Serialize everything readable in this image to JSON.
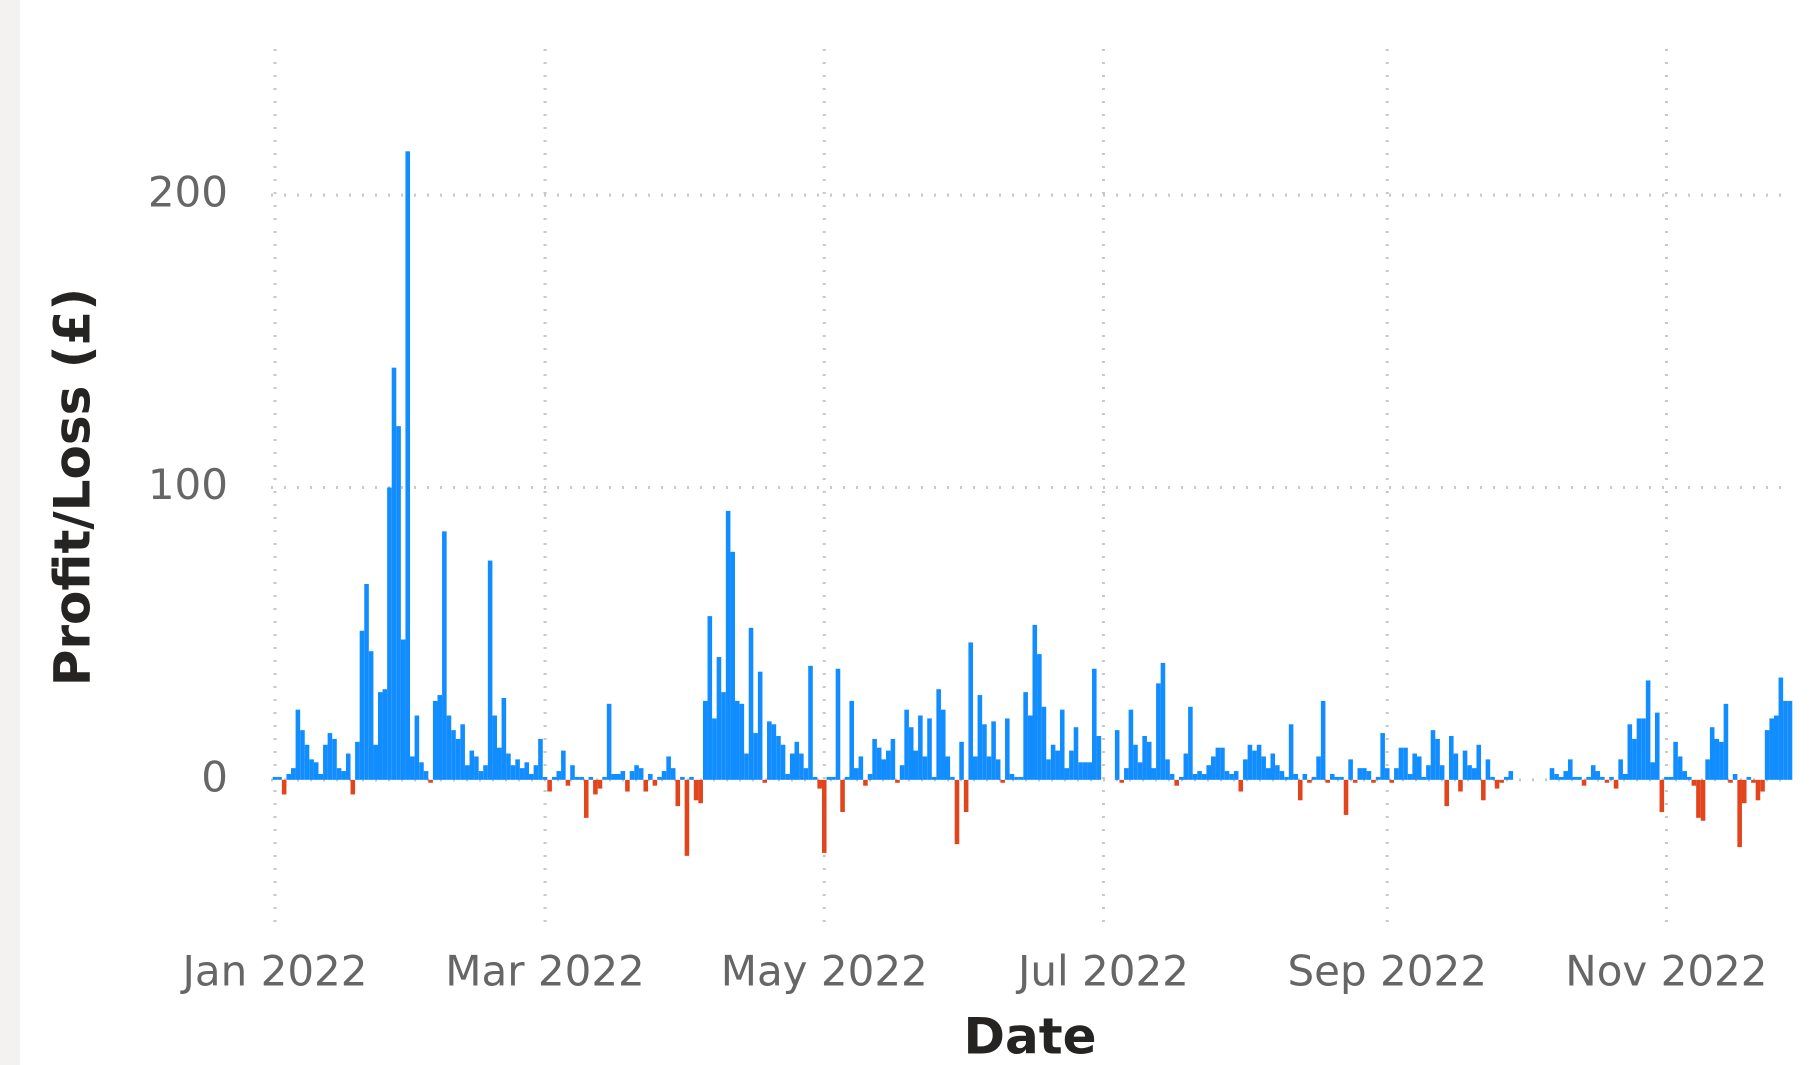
{
  "chart_data": {
    "type": "bar",
    "xlabel": "Date",
    "ylabel": "Profit/Loss (£)",
    "color": "#118dff",
    "negative_color": "#e2441c",
    "grid": true,
    "ylim": [
      -50,
      250
    ],
    "yticks": [
      0,
      100,
      200
    ],
    "xlim": [
      "2022-01-01",
      "2022-11-28"
    ],
    "xticks": [
      {
        "value": "2022-01-01",
        "label": "Jan 2022"
      },
      {
        "value": "2022-03-01",
        "label": "Mar 2022"
      },
      {
        "value": "2022-05-01",
        "label": "May 2022"
      },
      {
        "value": "2022-07-01",
        "label": "Jul 2022"
      },
      {
        "value": "2022-09-01",
        "label": "Sep 2022"
      },
      {
        "value": "2022-11-01",
        "label": "Nov 2022"
      }
    ],
    "x": [
      "2022-01-01",
      "2022-01-02",
      "2022-01-03",
      "2022-01-04",
      "2022-01-05",
      "2022-01-06",
      "2022-01-07",
      "2022-01-08",
      "2022-01-09",
      "2022-01-10",
      "2022-01-11",
      "2022-01-12",
      "2022-01-13",
      "2022-01-14",
      "2022-01-15",
      "2022-01-16",
      "2022-01-17",
      "2022-01-18",
      "2022-01-19",
      "2022-01-20",
      "2022-01-21",
      "2022-01-22",
      "2022-01-23",
      "2022-01-24",
      "2022-01-25",
      "2022-01-26",
      "2022-01-27",
      "2022-01-28",
      "2022-01-29",
      "2022-01-30",
      "2022-01-31",
      "2022-02-01",
      "2022-02-02",
      "2022-02-03",
      "2022-02-04",
      "2022-02-05",
      "2022-02-06",
      "2022-02-07",
      "2022-02-08",
      "2022-02-09",
      "2022-02-10",
      "2022-02-11",
      "2022-02-12",
      "2022-02-13",
      "2022-02-14",
      "2022-02-15",
      "2022-02-16",
      "2022-02-17",
      "2022-02-18",
      "2022-02-19",
      "2022-02-20",
      "2022-02-21",
      "2022-02-22",
      "2022-02-23",
      "2022-02-24",
      "2022-02-25",
      "2022-02-26",
      "2022-02-27",
      "2022-02-28",
      "2022-03-01",
      "2022-03-02",
      "2022-03-03",
      "2022-03-04",
      "2022-03-05",
      "2022-03-06",
      "2022-03-07",
      "2022-03-08",
      "2022-03-09",
      "2022-03-10",
      "2022-03-11",
      "2022-03-12",
      "2022-03-13",
      "2022-03-14",
      "2022-03-15",
      "2022-03-16",
      "2022-03-17",
      "2022-03-18",
      "2022-03-19",
      "2022-03-20",
      "2022-03-21",
      "2022-03-22",
      "2022-03-23",
      "2022-03-24",
      "2022-03-25",
      "2022-03-26",
      "2022-03-27",
      "2022-03-28",
      "2022-03-29",
      "2022-03-30",
      "2022-03-31",
      "2022-04-01",
      "2022-04-02",
      "2022-04-03",
      "2022-04-04",
      "2022-04-05",
      "2022-04-06",
      "2022-04-07",
      "2022-04-08",
      "2022-04-09",
      "2022-04-10",
      "2022-04-11",
      "2022-04-12",
      "2022-04-13",
      "2022-04-14",
      "2022-04-15",
      "2022-04-16",
      "2022-04-17",
      "2022-04-18",
      "2022-04-19",
      "2022-04-20",
      "2022-04-21",
      "2022-04-22",
      "2022-04-23",
      "2022-04-24",
      "2022-04-25",
      "2022-04-26",
      "2022-04-27",
      "2022-04-28",
      "2022-04-29",
      "2022-04-30",
      "2022-05-01",
      "2022-05-02",
      "2022-05-03",
      "2022-05-04",
      "2022-05-05",
      "2022-05-06",
      "2022-05-07",
      "2022-05-08",
      "2022-05-09",
      "2022-05-10",
      "2022-05-11",
      "2022-05-12",
      "2022-05-13",
      "2022-05-14",
      "2022-05-15",
      "2022-05-16",
      "2022-05-17",
      "2022-05-18",
      "2022-05-19",
      "2022-05-20",
      "2022-05-21",
      "2022-05-22",
      "2022-05-23",
      "2022-05-24",
      "2022-05-25",
      "2022-05-26",
      "2022-05-27",
      "2022-05-28",
      "2022-05-29",
      "2022-05-30",
      "2022-05-31",
      "2022-06-01",
      "2022-06-02",
      "2022-06-03",
      "2022-06-04",
      "2022-06-05",
      "2022-06-06",
      "2022-06-07",
      "2022-06-08",
      "2022-06-09",
      "2022-06-10",
      "2022-06-11",
      "2022-06-12",
      "2022-06-13",
      "2022-06-14",
      "2022-06-15",
      "2022-06-16",
      "2022-06-17",
      "2022-06-18",
      "2022-06-19",
      "2022-06-20",
      "2022-06-21",
      "2022-06-22",
      "2022-06-23",
      "2022-06-24",
      "2022-06-25",
      "2022-06-26",
      "2022-06-27",
      "2022-06-28",
      "2022-06-29",
      "2022-06-30",
      "2022-07-01",
      "2022-07-02",
      "2022-07-03",
      "2022-07-04",
      "2022-07-05",
      "2022-07-06",
      "2022-07-07",
      "2022-07-08",
      "2022-07-09",
      "2022-07-10",
      "2022-07-11",
      "2022-07-12",
      "2022-07-13",
      "2022-07-14",
      "2022-07-15",
      "2022-07-16",
      "2022-07-17",
      "2022-07-18",
      "2022-07-19",
      "2022-07-20",
      "2022-07-21",
      "2022-07-22",
      "2022-07-23",
      "2022-07-24",
      "2022-07-25",
      "2022-07-26",
      "2022-07-27",
      "2022-07-28",
      "2022-07-29",
      "2022-07-30",
      "2022-07-31",
      "2022-08-01",
      "2022-08-02",
      "2022-08-03",
      "2022-08-04",
      "2022-08-05",
      "2022-08-06",
      "2022-08-07",
      "2022-08-08",
      "2022-08-09",
      "2022-08-10",
      "2022-08-11",
      "2022-08-12",
      "2022-08-13",
      "2022-08-14",
      "2022-08-15",
      "2022-08-16",
      "2022-08-17",
      "2022-08-18",
      "2022-08-19",
      "2022-08-20",
      "2022-08-21",
      "2022-08-22",
      "2022-08-23",
      "2022-08-24",
      "2022-08-25",
      "2022-08-26",
      "2022-08-27",
      "2022-08-28",
      "2022-08-29",
      "2022-08-30",
      "2022-08-31",
      "2022-09-01",
      "2022-09-02",
      "2022-09-03",
      "2022-09-04",
      "2022-09-05",
      "2022-09-06",
      "2022-09-07",
      "2022-09-08",
      "2022-09-09",
      "2022-09-10",
      "2022-09-11",
      "2022-09-12",
      "2022-09-13",
      "2022-09-14",
      "2022-09-15",
      "2022-09-16",
      "2022-09-17",
      "2022-09-18",
      "2022-09-19",
      "2022-09-20",
      "2022-09-21",
      "2022-09-22",
      "2022-09-23",
      "2022-09-24",
      "2022-09-25",
      "2022-09-26",
      "2022-09-27",
      "2022-09-28",
      "2022-09-29",
      "2022-09-30",
      "2022-10-01",
      "2022-10-02",
      "2022-10-03",
      "2022-10-04",
      "2022-10-05",
      "2022-10-06",
      "2022-10-07",
      "2022-10-08",
      "2022-10-09",
      "2022-10-10",
      "2022-10-11",
      "2022-10-12",
      "2022-10-13",
      "2022-10-14",
      "2022-10-15",
      "2022-10-16",
      "2022-10-17",
      "2022-10-18",
      "2022-10-19",
      "2022-10-20",
      "2022-10-21",
      "2022-10-22",
      "2022-10-23",
      "2022-10-24",
      "2022-10-25",
      "2022-10-26",
      "2022-10-27",
      "2022-10-28",
      "2022-10-29",
      "2022-10-30",
      "2022-10-31",
      "2022-11-01",
      "2022-11-02",
      "2022-11-03",
      "2022-11-04",
      "2022-11-05",
      "2022-11-06",
      "2022-11-07",
      "2022-11-08",
      "2022-11-09",
      "2022-11-10",
      "2022-11-11",
      "2022-11-12",
      "2022-11-13",
      "2022-11-14",
      "2022-11-15",
      "2022-11-16",
      "2022-11-17",
      "2022-11-18",
      "2022-11-19",
      "2022-11-20",
      "2022-11-21",
      "2022-11-22",
      "2022-11-23",
      "2022-11-24",
      "2022-11-25",
      "2022-11-26",
      "2022-11-27",
      "2022-11-28"
    ],
    "values": [
      1,
      1,
      -5,
      2,
      4,
      24,
      17,
      12,
      7,
      6,
      2,
      12,
      16,
      14,
      4,
      3,
      9,
      -5,
      13,
      51,
      67,
      44,
      12,
      30,
      31,
      100,
      141,
      121,
      48,
      215,
      8,
      22,
      6,
      3,
      -1,
      27,
      29,
      85,
      22,
      17,
      14,
      19,
      5,
      10,
      8,
      3,
      5,
      75,
      22,
      11,
      28,
      9,
      5,
      7,
      4,
      6,
      2,
      5,
      14,
      1,
      -4,
      1,
      3,
      10,
      -2,
      5,
      1,
      1,
      -13,
      1,
      -5,
      -3,
      1,
      26,
      2,
      2,
      3,
      -4,
      3,
      5,
      4,
      -4,
      2,
      -2,
      1,
      3,
      8,
      4,
      -9,
      1,
      -26,
      1,
      -7,
      -8,
      27,
      56,
      21,
      42,
      30,
      92,
      78,
      27,
      26,
      9,
      52,
      16,
      37,
      -1,
      20,
      19,
      15,
      12,
      2,
      9,
      13,
      9,
      4,
      39,
      1,
      -3,
      -25,
      1,
      1,
      38,
      -11,
      1,
      27,
      4,
      8,
      -2,
      2,
      14,
      11,
      7,
      10,
      14,
      -1,
      5,
      24,
      18,
      10,
      22,
      8,
      21,
      1,
      31,
      24,
      8,
      1,
      -22,
      13,
      -11,
      47,
      8,
      29,
      19,
      8,
      20,
      7,
      -1,
      21,
      2,
      1,
      1,
      30,
      22,
      53,
      43,
      25,
      7,
      12,
      10,
      24,
      4,
      10,
      18,
      6,
      6,
      6,
      38,
      15,
      null,
      null,
      null,
      17,
      -1,
      4,
      24,
      12,
      6,
      15,
      13,
      4,
      33,
      40,
      7,
      2,
      -2,
      1,
      9,
      25,
      2,
      3,
      2,
      5,
      8,
      11,
      11,
      3,
      2,
      3,
      -4,
      7,
      12,
      10,
      12,
      8,
      4,
      9,
      5,
      3,
      1,
      19,
      2,
      -7,
      2,
      -1,
      1,
      8,
      27,
      -1,
      2,
      1,
      1,
      -12,
      7,
      -1,
      4,
      4,
      3,
      -1,
      1,
      16,
      4,
      -1,
      4,
      11,
      11,
      2,
      9,
      8,
      1,
      5,
      17,
      14,
      5,
      -9,
      15,
      9,
      -4,
      10,
      5,
      4,
      12,
      -7,
      7,
      1,
      -3,
      -1,
      1,
      3,
      null,
      null,
      null,
      null,
      null,
      null,
      null,
      null,
      4,
      2,
      1,
      3,
      7,
      1,
      1,
      -2,
      1,
      5,
      3,
      1,
      -1,
      1,
      -3,
      7,
      2,
      19,
      14,
      21,
      21,
      34,
      6,
      23,
      -11,
      1,
      1,
      13,
      8,
      3,
      1,
      -2,
      -13,
      -14,
      7,
      18,
      14,
      13,
      26,
      -1,
      2,
      -23,
      -8,
      1,
      -1,
      -7,
      -4,
      17,
      21,
      22,
      35,
      27,
      27
    ]
  }
}
